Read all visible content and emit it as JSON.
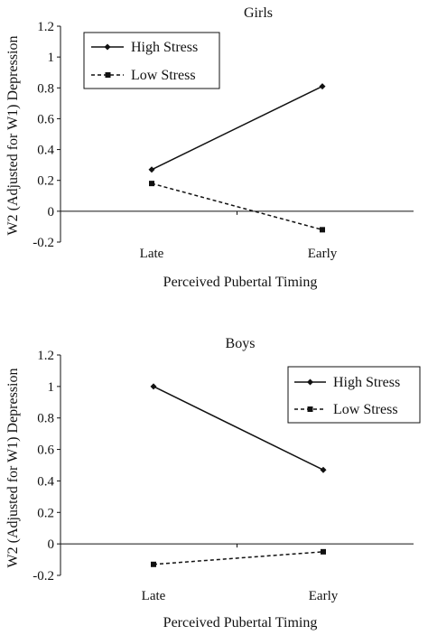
{
  "chart_data": [
    {
      "type": "line",
      "title": "Girls",
      "xlabel": "Perceived Pubertal Timing",
      "ylabel": "W2 (Adjusted for W1) Depression",
      "categories": [
        "Late",
        "Early"
      ],
      "ylim": [
        -0.2,
        1.2
      ],
      "yticks": [
        "1.2",
        "1",
        "0.8",
        "0.6",
        "0.4",
        "0.2",
        "0",
        "-0.2"
      ],
      "legend_position": "top-left",
      "series": [
        {
          "name": "High Stress",
          "values": [
            0.27,
            0.81
          ],
          "style": "solid",
          "marker": "diamond"
        },
        {
          "name": "Low Stress",
          "values": [
            0.18,
            -0.12
          ],
          "style": "dashed",
          "marker": "square"
        }
      ]
    },
    {
      "type": "line",
      "title": "Boys",
      "xlabel": "Perceived Pubertal Timing",
      "ylabel": "W2 (Adjusted for W1) Depression",
      "categories": [
        "Late",
        "Early"
      ],
      "ylim": [
        -0.2,
        1.2
      ],
      "yticks": [
        "1.2",
        "1",
        "0.8",
        "0.6",
        "0.4",
        "0.2",
        "0",
        "-0.2"
      ],
      "legend_position": "top-right",
      "series": [
        {
          "name": "High Stress",
          "values": [
            1.0,
            0.47
          ],
          "style": "solid",
          "marker": "diamond"
        },
        {
          "name": "Low Stress",
          "values": [
            -0.13,
            -0.05
          ],
          "style": "dashed",
          "marker": "square"
        }
      ]
    }
  ],
  "colors": {
    "line": "#111111",
    "background": "#ffffff"
  }
}
